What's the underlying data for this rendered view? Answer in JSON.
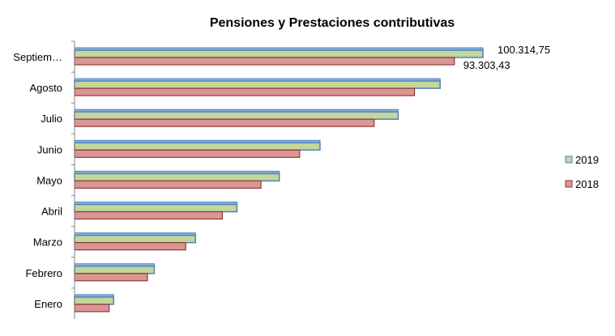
{
  "chart_data": {
    "type": "bar",
    "orientation": "horizontal",
    "title": "Pensiones y Prestaciones contributivas",
    "categories": [
      "Enero",
      "Febrero",
      "Marzo",
      "Abril",
      "Mayo",
      "Junio",
      "Julio",
      "Agosto",
      "Septiem…"
    ],
    "series": [
      {
        "name": "2019",
        "color": "#c4d79b",
        "border": "#4f81bd",
        "values": [
          9600,
          19600,
          29700,
          39900,
          50300,
          60300,
          79500,
          89800,
          100314.75
        ]
      },
      {
        "name": "2018",
        "color": "#da9694",
        "border": "#953735",
        "values": [
          8500,
          17900,
          27300,
          36300,
          45800,
          55300,
          73600,
          83500,
          93303.43
        ]
      }
    ],
    "data_labels": [
      {
        "category": "Septiem…",
        "series": "2019",
        "text": "100.314,75"
      },
      {
        "category": "Septiem…",
        "series": "2018",
        "text": "93.303,43"
      }
    ],
    "xlim": [
      0,
      100314.75
    ],
    "grid": false,
    "legend": "right",
    "xlabel": "",
    "ylabel": ""
  }
}
